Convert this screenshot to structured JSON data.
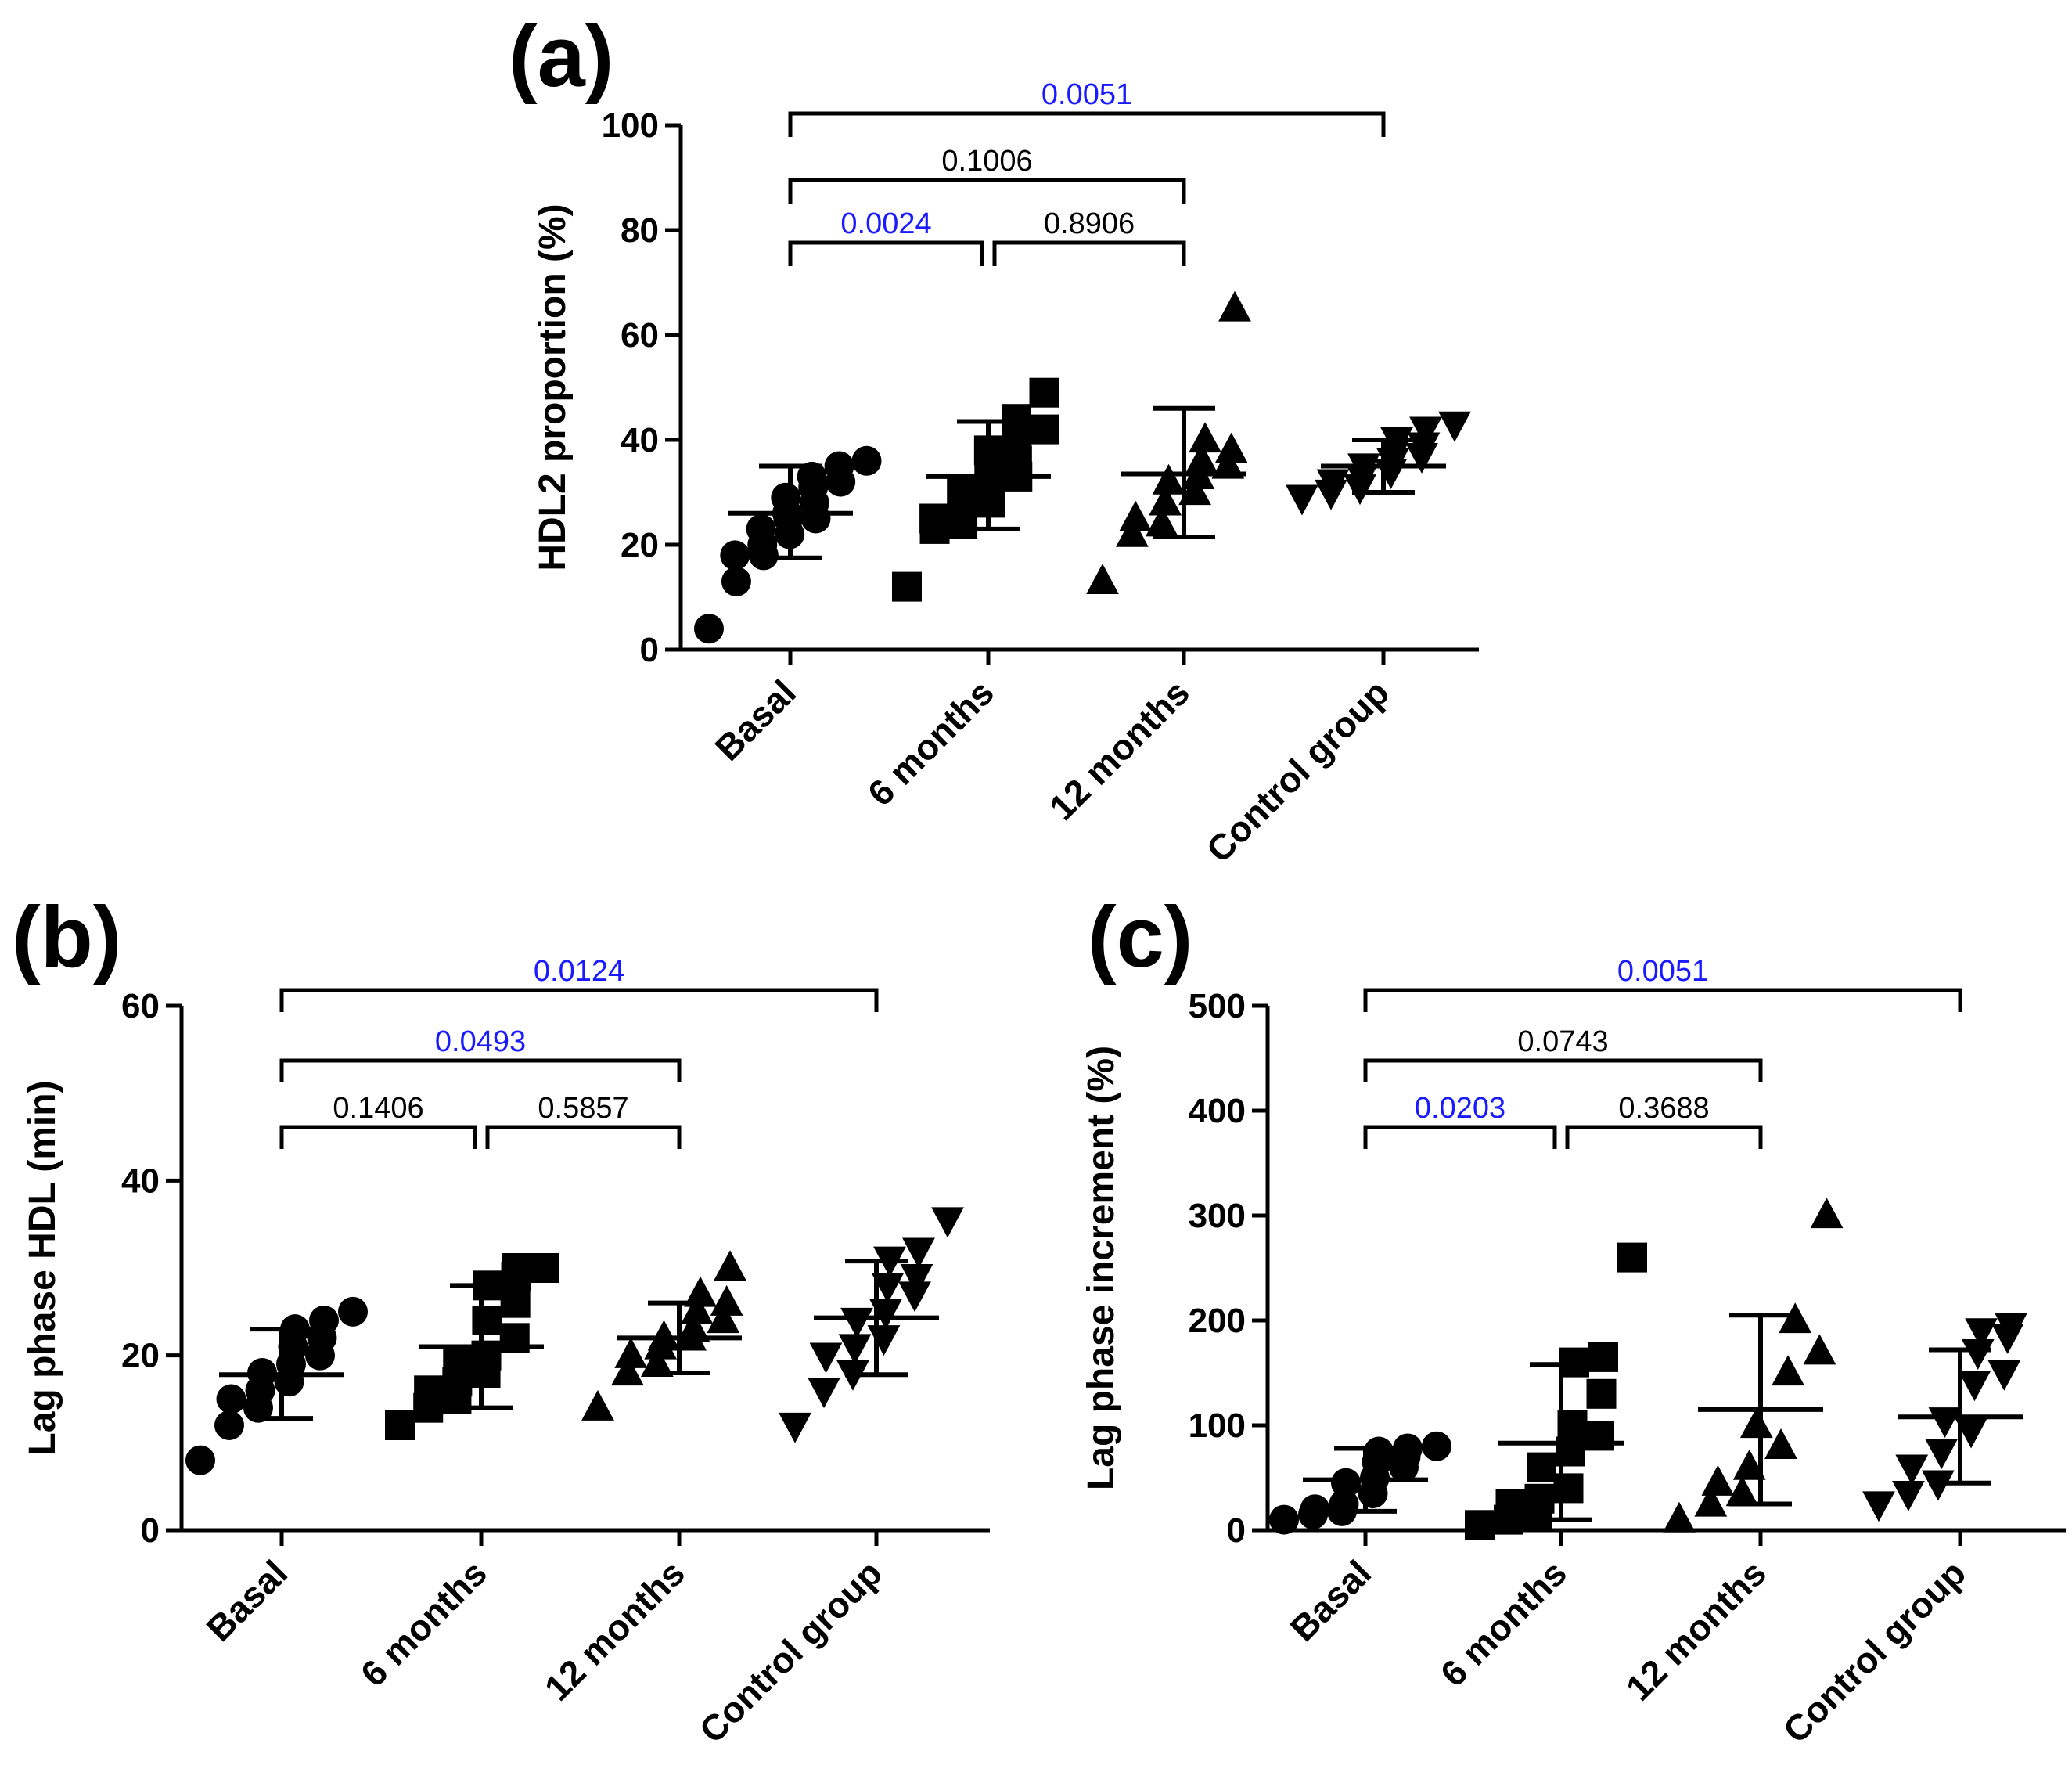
{
  "figure": {
    "significant_color": "#1a1aff",
    "nonsignificant_color": "#000000"
  },
  "chart_data": [
    {
      "id": "a",
      "panel_label": "(a)",
      "type": "scatter",
      "ylabel": "HDL2 proportion (%)",
      "ylim": [
        0,
        100
      ],
      "yticks": [
        "0",
        "20",
        "40",
        "60",
        "80",
        "100"
      ],
      "categories": [
        "Basal",
        "6 months",
        "12 months",
        "Control group"
      ],
      "markers": [
        "circle",
        "square",
        "triangle-up",
        "triangle-down"
      ],
      "series": [
        {
          "name": "Basal",
          "mean": 26,
          "sd_low": 17.5,
          "sd_high": 35,
          "values": [
            4,
            13,
            18,
            18,
            20,
            22,
            23,
            25,
            25,
            26,
            28,
            29,
            31,
            32,
            33,
            35,
            36
          ]
        },
        {
          "name": "6 months",
          "mean": 33,
          "sd_low": 23,
          "sd_high": 43.5,
          "values": [
            12,
            23,
            24,
            25,
            27,
            28,
            30,
            31,
            33,
            35,
            36,
            38,
            40,
            42,
            44,
            49
          ]
        },
        {
          "name": "12 months",
          "mean": 33.5,
          "sd_low": 21.5,
          "sd_high": 46,
          "values": [
            13,
            22,
            24,
            25,
            28,
            30,
            32,
            33,
            35,
            36,
            38,
            40,
            65
          ]
        },
        {
          "name": "Control group",
          "mean": 35,
          "sd_low": 30,
          "sd_high": 40,
          "values": [
            29,
            30,
            31,
            32,
            33,
            34,
            35,
            36,
            37,
            38,
            39,
            40,
            42,
            43
          ]
        }
      ],
      "comparisons": [
        {
          "from": 0,
          "to": 1,
          "label": "0.0024",
          "significant": true
        },
        {
          "from": 1,
          "to": 2,
          "label": "0.8906",
          "significant": false
        },
        {
          "from": 0,
          "to": 2,
          "label": "0.1006",
          "significant": false
        },
        {
          "from": 0,
          "to": 3,
          "label": "0.0051",
          "significant": true
        }
      ]
    },
    {
      "id": "b",
      "panel_label": "(b)",
      "type": "scatter",
      "ylabel": "Lag phase HDL (min)",
      "ylim": [
        0,
        60
      ],
      "yticks": [
        "0",
        "20",
        "40",
        "60"
      ],
      "categories": [
        "Basal",
        "6 months",
        "12 months",
        "Control group"
      ],
      "markers": [
        "circle",
        "square",
        "triangle-up",
        "triangle-down"
      ],
      "series": [
        {
          "name": "Basal",
          "mean": 17.8,
          "sd_low": 12.8,
          "sd_high": 23,
          "values": [
            8,
            12,
            14,
            15,
            16,
            17,
            18,
            19,
            20,
            21,
            22,
            23,
            24,
            25
          ]
        },
        {
          "name": "6 months",
          "mean": 21,
          "sd_low": 14,
          "sd_high": 28,
          "values": [
            12,
            14,
            15,
            16,
            17,
            18,
            19,
            20,
            22,
            24,
            26,
            28,
            29,
            30,
            30
          ]
        },
        {
          "name": "12 months",
          "mean": 22,
          "sd_low": 18,
          "sd_high": 26,
          "values": [
            14,
            18,
            19,
            20,
            21,
            22,
            22,
            23,
            24,
            25,
            26,
            27,
            30
          ]
        },
        {
          "name": "Control group",
          "mean": 24.3,
          "sd_low": 17.8,
          "sd_high": 30.8,
          "values": [
            12,
            16,
            18,
            20,
            21,
            22,
            24,
            25,
            27,
            28,
            29,
            31,
            32,
            35.5
          ]
        }
      ],
      "comparisons": [
        {
          "from": 0,
          "to": 1,
          "label": "0.1406",
          "significant": false
        },
        {
          "from": 1,
          "to": 2,
          "label": "0.5857",
          "significant": false
        },
        {
          "from": 0,
          "to": 2,
          "label": "0.0493",
          "significant": true
        },
        {
          "from": 0,
          "to": 3,
          "label": "0.0124",
          "significant": true
        }
      ]
    },
    {
      "id": "c",
      "panel_label": "(c)",
      "type": "scatter",
      "ylabel": "Lag phase increment (%)",
      "ylim": [
        0,
        500
      ],
      "yticks": [
        "0",
        "100",
        "200",
        "300",
        "400",
        "500"
      ],
      "categories": [
        "Basal",
        "6 months",
        "12 months",
        "Control group"
      ],
      "markers": [
        "circle",
        "square",
        "triangle-up",
        "triangle-down"
      ],
      "series": [
        {
          "name": "Basal",
          "mean": 48,
          "sd_low": 18,
          "sd_high": 78,
          "values": [
            10,
            15,
            18,
            20,
            25,
            35,
            45,
            50,
            60,
            65,
            70,
            75,
            78,
            80
          ]
        },
        {
          "name": "6 months",
          "mean": 83,
          "sd_low": 10,
          "sd_high": 158,
          "values": [
            5,
            10,
            15,
            25,
            30,
            40,
            60,
            75,
            90,
            100,
            130,
            160,
            165,
            260
          ]
        },
        {
          "name": "12 months",
          "mean": 115,
          "sd_low": 25,
          "sd_high": 205,
          "values": [
            10,
            25,
            35,
            45,
            60,
            80,
            100,
            150,
            170,
            200,
            300
          ]
        },
        {
          "name": "Control group",
          "mean": 108,
          "sd_low": 45,
          "sd_high": 172,
          "values": [
            25,
            35,
            45,
            60,
            75,
            95,
            105,
            140,
            150,
            170,
            185,
            190,
            195
          ]
        }
      ],
      "comparisons": [
        {
          "from": 0,
          "to": 1,
          "label": "0.0203",
          "significant": true
        },
        {
          "from": 1,
          "to": 2,
          "label": "0.3688",
          "significant": false
        },
        {
          "from": 0,
          "to": 2,
          "label": "0.0743",
          "significant": false
        },
        {
          "from": 0,
          "to": 3,
          "label": "0.0051",
          "significant": true
        }
      ]
    }
  ]
}
